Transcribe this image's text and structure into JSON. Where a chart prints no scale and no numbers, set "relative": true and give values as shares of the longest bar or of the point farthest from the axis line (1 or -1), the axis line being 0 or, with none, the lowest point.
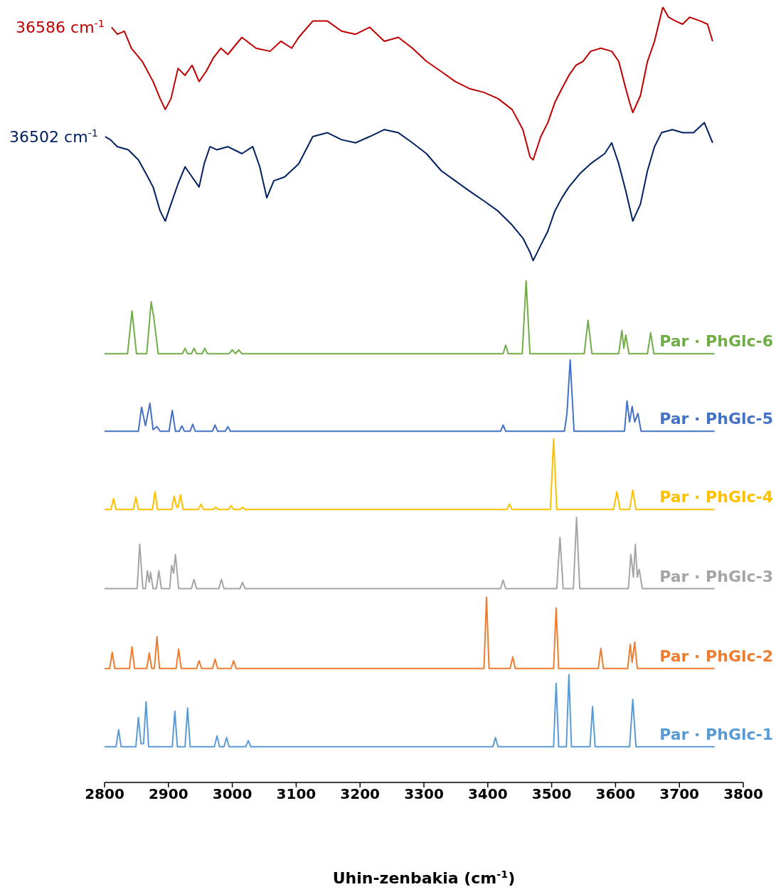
{
  "chart_data": {
    "type": "line",
    "relative": true,
    "xlabel": "Uhin-zenbakia (cm$^{-1}$)",
    "xlim": [
      2800,
      3800
    ],
    "xticks": [
      2800,
      2900,
      3000,
      3100,
      3200,
      3300,
      3400,
      3500,
      3600,
      3700,
      3800
    ],
    "marker": "none",
    "line_style": "solid",
    "series": [
      {
        "name": "36586 cm$^{-1}$",
        "color": "#c00000",
        "x": [
          2811,
          2820,
          2831,
          2842,
          2859,
          2876,
          2887,
          2895,
          2904,
          2915,
          2926,
          2937,
          2948,
          2959,
          2970,
          2982,
          2993,
          3015,
          3037,
          3059,
          3076,
          3093,
          3104,
          3126,
          3149,
          3171,
          3193,
          3215,
          3238,
          3260,
          3282,
          3304,
          3327,
          3349,
          3371,
          3394,
          3416,
          3438,
          3455,
          3466,
          3471,
          3483,
          3494,
          3505,
          3516,
          3527,
          3538,
          3549,
          3561,
          3577,
          3594,
          3605,
          3616,
          3622,
          3627,
          3639,
          3650,
          3661,
          3674,
          3683,
          3694,
          3705,
          3716,
          3733,
          3744,
          3752
        ],
        "values": [
          0.974,
          0.965,
          0.969,
          0.947,
          0.93,
          0.904,
          0.882,
          0.868,
          0.882,
          0.921,
          0.912,
          0.925,
          0.904,
          0.917,
          0.934,
          0.947,
          0.939,
          0.961,
          0.947,
          0.943,
          0.956,
          0.947,
          0.961,
          0.982,
          0.982,
          0.969,
          0.965,
          0.974,
          0.956,
          0.961,
          0.947,
          0.93,
          0.917,
          0.904,
          0.895,
          0.89,
          0.882,
          0.868,
          0.842,
          0.807,
          0.803,
          0.833,
          0.851,
          0.877,
          0.895,
          0.912,
          0.925,
          0.93,
          0.943,
          0.947,
          0.943,
          0.93,
          0.895,
          0.877,
          0.864,
          0.886,
          0.93,
          0.956,
          1.0,
          0.987,
          0.982,
          0.978,
          0.987,
          0.982,
          0.978,
          0.956
        ]
      },
      {
        "name": "36502 cm$^{-1}$",
        "color": "#002060",
        "x": [
          2801,
          2809,
          2820,
          2837,
          2853,
          2865,
          2876,
          2887,
          2895,
          2904,
          2915,
          2926,
          2937,
          2948,
          2956,
          2965,
          2976,
          2993,
          3015,
          3032,
          3043,
          3054,
          3065,
          3082,
          3104,
          3126,
          3149,
          3171,
          3193,
          3215,
          3238,
          3260,
          3282,
          3304,
          3327,
          3349,
          3371,
          3394,
          3416,
          3438,
          3455,
          3466,
          3471,
          3483,
          3494,
          3505,
          3516,
          3527,
          3544,
          3561,
          3583,
          3594,
          3605,
          3616,
          3627,
          3639,
          3650,
          3661,
          3672,
          3689,
          3705,
          3722,
          3739,
          3752
        ],
        "values": [
          0.833,
          0.829,
          0.82,
          0.816,
          0.803,
          0.785,
          0.768,
          0.737,
          0.724,
          0.746,
          0.772,
          0.794,
          0.781,
          0.768,
          0.798,
          0.82,
          0.816,
          0.82,
          0.811,
          0.82,
          0.794,
          0.754,
          0.776,
          0.781,
          0.798,
          0.833,
          0.838,
          0.829,
          0.825,
          0.833,
          0.842,
          0.838,
          0.825,
          0.811,
          0.789,
          0.776,
          0.763,
          0.75,
          0.737,
          0.719,
          0.702,
          0.684,
          0.673,
          0.693,
          0.711,
          0.737,
          0.754,
          0.768,
          0.785,
          0.798,
          0.811,
          0.825,
          0.798,
          0.763,
          0.724,
          0.746,
          0.789,
          0.82,
          0.838,
          0.842,
          0.838,
          0.838,
          0.851,
          0.825
        ]
      },
      {
        "name": "Par · PhGlc-6",
        "color": "#70ad47",
        "x": [
          2800,
          2836,
          2843,
          2850,
          2866,
          2873,
          2877,
          2884,
          2922,
          2926,
          2930,
          2936,
          2940,
          2944,
          2953,
          2957,
          2961,
          2995,
          3000,
          3005,
          3010,
          3015,
          3020,
          3424,
          3428,
          3432,
          3454,
          3460,
          3466,
          3551,
          3557,
          3563,
          3605,
          3610,
          3613,
          3616,
          3621,
          3650,
          3655,
          3660,
          3755
        ],
        "values": [
          0.553,
          0.553,
          0.608,
          0.553,
          0.553,
          0.62,
          0.6,
          0.553,
          0.553,
          0.56,
          0.553,
          0.553,
          0.56,
          0.553,
          0.553,
          0.56,
          0.553,
          0.553,
          0.558,
          0.553,
          0.558,
          0.553,
          0.553,
          0.553,
          0.564,
          0.553,
          0.553,
          0.647,
          0.553,
          0.553,
          0.596,
          0.553,
          0.553,
          0.583,
          0.56,
          0.577,
          0.553,
          0.553,
          0.58,
          0.553,
          0.553
        ]
      },
      {
        "name": "Par · PhGlc-5",
        "color": "#4472c4",
        "x": [
          2800,
          2853,
          2858,
          2864,
          2871,
          2876,
          2882,
          2887,
          2901,
          2906,
          2911,
          2917,
          2921,
          2925,
          2934,
          2938,
          2942,
          2969,
          2973,
          2977,
          2989,
          2993,
          2997,
          3420,
          3424,
          3428,
          3520,
          3524,
          3529,
          3535,
          3614,
          3618,
          3622,
          3626,
          3630,
          3635,
          3640,
          3755
        ],
        "values": [
          0.453,
          0.453,
          0.484,
          0.46,
          0.489,
          0.455,
          0.459,
          0.453,
          0.453,
          0.48,
          0.453,
          0.453,
          0.46,
          0.453,
          0.453,
          0.462,
          0.453,
          0.453,
          0.461,
          0.453,
          0.453,
          0.459,
          0.453,
          0.453,
          0.461,
          0.453,
          0.453,
          0.476,
          0.545,
          0.453,
          0.453,
          0.492,
          0.465,
          0.485,
          0.465,
          0.476,
          0.453,
          0.453
        ]
      },
      {
        "name": "Par · PhGlc-4",
        "color": "#ffc000",
        "x": [
          2800,
          2810,
          2814,
          2818,
          2845,
          2849,
          2853,
          2875,
          2879,
          2883,
          2905,
          2909,
          2913,
          2915,
          2919,
          2923,
          2947,
          2951,
          2955,
          2970,
          2974,
          2978,
          2994,
          2998,
          3002,
          3012,
          3016,
          3020,
          3430,
          3434,
          3438,
          3498,
          3503,
          3508,
          3597,
          3602,
          3607,
          3622,
          3627,
          3632,
          3755
        ],
        "values": [
          0.352,
          0.352,
          0.366,
          0.352,
          0.352,
          0.368,
          0.352,
          0.352,
          0.375,
          0.352,
          0.352,
          0.369,
          0.355,
          0.355,
          0.371,
          0.352,
          0.352,
          0.359,
          0.352,
          0.352,
          0.355,
          0.352,
          0.352,
          0.357,
          0.352,
          0.352,
          0.355,
          0.352,
          0.352,
          0.359,
          0.352,
          0.352,
          0.443,
          0.352,
          0.352,
          0.375,
          0.352,
          0.352,
          0.377,
          0.352,
          0.352
        ]
      },
      {
        "name": "Par · PhGlc-3",
        "color": "#a5a5a5",
        "x": [
          2800,
          2851,
          2855,
          2860,
          2864,
          2867,
          2870,
          2872,
          2876,
          2881,
          2885,
          2889,
          2902,
          2905,
          2908,
          2911,
          2916,
          2936,
          2940,
          2944,
          2979,
          2983,
          2987,
          3012,
          3016,
          3020,
          3420,
          3424,
          3428,
          3508,
          3513,
          3518,
          3534,
          3539,
          3544,
          3620,
          3624,
          3628,
          3631,
          3634,
          3637,
          3642,
          3755
        ],
        "values": [
          0.25,
          0.25,
          0.307,
          0.25,
          0.25,
          0.273,
          0.258,
          0.271,
          0.25,
          0.25,
          0.273,
          0.25,
          0.25,
          0.28,
          0.27,
          0.294,
          0.25,
          0.25,
          0.262,
          0.25,
          0.25,
          0.262,
          0.25,
          0.25,
          0.258,
          0.25,
          0.25,
          0.261,
          0.25,
          0.25,
          0.316,
          0.25,
          0.25,
          0.342,
          0.25,
          0.25,
          0.294,
          0.265,
          0.307,
          0.265,
          0.275,
          0.25,
          0.25
        ]
      },
      {
        "name": "Par · PhGlc-2",
        "color": "#ed7d31",
        "x": [
          2800,
          2808,
          2812,
          2816,
          2839,
          2843,
          2847,
          2866,
          2870,
          2874,
          2878,
          2882,
          2886,
          2912,
          2916,
          2920,
          2944,
          2948,
          2952,
          2969,
          2973,
          2977,
          2998,
          3002,
          3006,
          3394,
          3398,
          3402,
          3435,
          3439,
          3443,
          3503,
          3507,
          3511,
          3573,
          3577,
          3581,
          3619,
          3623,
          3626,
          3630,
          3634,
          3755
        ],
        "values": [
          0.147,
          0.147,
          0.168,
          0.147,
          0.147,
          0.175,
          0.147,
          0.147,
          0.167,
          0.147,
          0.147,
          0.188,
          0.147,
          0.147,
          0.172,
          0.147,
          0.147,
          0.157,
          0.147,
          0.147,
          0.159,
          0.147,
          0.147,
          0.157,
          0.147,
          0.147,
          0.239,
          0.147,
          0.147,
          0.162,
          0.147,
          0.147,
          0.225,
          0.147,
          0.147,
          0.173,
          0.147,
          0.147,
          0.178,
          0.155,
          0.181,
          0.147,
          0.147
        ]
      },
      {
        "name": "Par · PhGlc-1",
        "color": "#5b9bd5",
        "x": [
          2800,
          2818,
          2822,
          2826,
          2849,
          2853,
          2857,
          2861,
          2865,
          2869,
          2906,
          2910,
          2914,
          2926,
          2930,
          2934,
          2972,
          2976,
          2980,
          2987,
          2991,
          2995,
          3021,
          3025,
          3029,
          3408,
          3412,
          3416,
          3503,
          3507,
          3511,
          3523,
          3527,
          3531,
          3560,
          3564,
          3568,
          3622,
          3627,
          3632,
          3755
        ],
        "values": [
          0.046,
          0.046,
          0.068,
          0.046,
          0.046,
          0.084,
          0.05,
          0.05,
          0.104,
          0.046,
          0.046,
          0.092,
          0.046,
          0.046,
          0.096,
          0.046,
          0.046,
          0.06,
          0.046,
          0.046,
          0.058,
          0.046,
          0.046,
          0.054,
          0.046,
          0.046,
          0.058,
          0.046,
          0.046,
          0.128,
          0.046,
          0.046,
          0.139,
          0.046,
          0.046,
          0.098,
          0.046,
          0.046,
          0.107,
          0.046,
          0.046
        ]
      }
    ]
  }
}
